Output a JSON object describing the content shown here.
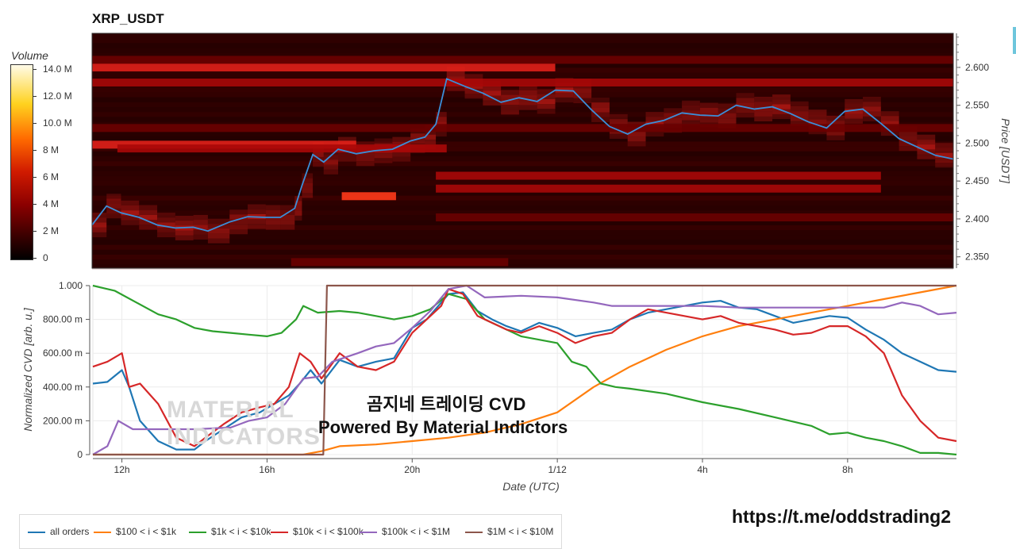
{
  "title": "XRP_USDT",
  "colorbar": {
    "title": "Volume",
    "ticks": [
      "14.0 M",
      "12.0 M",
      "10.0 M",
      "8 M",
      "6 M",
      "4 M",
      "2 M",
      "0"
    ]
  },
  "watermark": {
    "korean": "곰지네 트레이딩 CVD",
    "powered": "Powered By Material Indictors",
    "logo_line1": "MATERIAL",
    "logo_line2": "INDICATORS"
  },
  "url": "https://t.me/oddstrading2",
  "colors": {
    "all_orders": "#1f77b4",
    "g100_1k": "#ff7f0e",
    "g1k_10k": "#2ca02c",
    "g10k_100k": "#d62728",
    "g100k_1m": "#9467bd",
    "g1m_10m": "#8c564b",
    "price_line": "#3b8fd9"
  },
  "legend": [
    {
      "label": "all orders",
      "color": "#1f77b4"
    },
    {
      "label": "$100 < i < $1k",
      "color": "#ff7f0e"
    },
    {
      "label": "$1k < i < $10k",
      "color": "#2ca02c"
    },
    {
      "label": "$10k < i < $100k",
      "color": "#d62728"
    },
    {
      "label": "$100k < i < $1M",
      "color": "#9467bd"
    },
    {
      "label": "$1M < i < $10M",
      "color": "#8c564b"
    }
  ],
  "chart_data": [
    {
      "type": "heatmap",
      "title": "XRP_USDT",
      "ylabel": "Price [USDT]",
      "yticks": [
        "2.600",
        "2.550",
        "2.500",
        "2.450",
        "2.400",
        "2.350"
      ],
      "ylim": [
        2.335,
        2.645
      ],
      "xlim": [
        11.2,
        35.0
      ],
      "price_series": {
        "x": [
          11.2,
          11.6,
          12.0,
          12.5,
          13.0,
          13.5,
          14.0,
          14.4,
          15.0,
          15.5,
          16.0,
          16.4,
          16.8,
          17.0,
          17.3,
          17.6,
          18.0,
          18.5,
          19.0,
          19.5,
          20.0,
          20.4,
          20.7,
          21.0,
          21.5,
          22.0,
          22.5,
          23.0,
          23.5,
          24.0,
          24.5,
          25.0,
          25.5,
          26.0,
          26.5,
          27.0,
          27.5,
          28.0,
          28.5,
          29.0,
          29.5,
          30.0,
          30.5,
          31.0,
          31.5,
          32.0,
          32.5,
          33.0,
          33.5,
          34.0,
          34.5,
          35.0
        ],
        "y": [
          2.392,
          2.417,
          2.408,
          2.402,
          2.392,
          2.388,
          2.389,
          2.384,
          2.396,
          2.403,
          2.402,
          2.402,
          2.414,
          2.444,
          2.485,
          2.475,
          2.492,
          2.486,
          2.49,
          2.492,
          2.503,
          2.508,
          2.525,
          2.585,
          2.575,
          2.566,
          2.554,
          2.56,
          2.555,
          2.57,
          2.569,
          2.544,
          2.522,
          2.512,
          2.525,
          2.53,
          2.54,
          2.537,
          2.536,
          2.55,
          2.545,
          2.548,
          2.539,
          2.528,
          2.52,
          2.542,
          2.545,
          2.526,
          2.506,
          2.495,
          2.484,
          2.479
        ],
        "color": "#3b8fd9"
      },
      "bands": [
        {
          "price": 2.6,
          "x": [
            11.2,
            24.0
          ],
          "level": 0.55
        },
        {
          "price": 2.58,
          "x": [
            11.2,
            35.0
          ],
          "level": 0.25
        },
        {
          "price": 2.498,
          "x": [
            11.2,
            18.5
          ],
          "level": 0.45
        },
        {
          "price": 2.493,
          "x": [
            11.9,
            21.0
          ],
          "level": 0.35
        },
        {
          "price": 2.43,
          "x": [
            18.1,
            19.6
          ],
          "level": 0.75
        },
        {
          "price": 2.457,
          "x": [
            20.7,
            33.0
          ],
          "level": 0.25
        },
        {
          "price": 2.44,
          "x": [
            20.7,
            33.0
          ],
          "level": 0.25
        },
        {
          "price": 2.402,
          "x": [
            20.7,
            35.0
          ],
          "level": 0.18
        },
        {
          "price": 2.343,
          "x": [
            16.7,
            22.7
          ],
          "level": 0.18
        },
        {
          "price": 2.61,
          "x": [
            11.2,
            35.0
          ],
          "level": 0.16
        },
        {
          "price": 2.52,
          "x": [
            11.2,
            35.0
          ],
          "level": 0.14
        }
      ]
    },
    {
      "type": "line",
      "xlabel": "Date (UTC)",
      "ylabel": "Normalized CVD [arb. u.]",
      "xticks": [
        "12h",
        "16h",
        "20h",
        "1/12",
        "4h",
        "8h"
      ],
      "xtick_values": [
        12,
        16,
        20,
        24,
        28,
        32
      ],
      "yticks": [
        "0",
        "200.00 m",
        "400.00 m",
        "600.00 m",
        "800.00 m",
        "1.000"
      ],
      "ylim": [
        0,
        1
      ],
      "xlim": [
        11.2,
        35.0
      ],
      "series": [
        {
          "name": "all orders",
          "x": [
            11.2,
            11.6,
            12.0,
            12.2,
            12.5,
            13.0,
            13.5,
            14.0,
            14.3,
            14.8,
            15.3,
            15.8,
            16.2,
            16.6,
            16.9,
            17.2,
            17.5,
            18.0,
            18.5,
            19.0,
            19.5,
            20.0,
            20.4,
            20.8,
            21.0,
            21.4,
            21.8,
            22.2,
            22.6,
            23.0,
            23.5,
            24.0,
            24.5,
            25.0,
            25.5,
            26.0,
            26.5,
            27.0,
            27.5,
            28.0,
            28.5,
            29.0,
            29.5,
            30.0,
            30.5,
            31.0,
            31.5,
            32.0,
            32.5,
            33.0,
            33.5,
            34.0,
            34.5,
            35.0
          ],
          "y": [
            0.42,
            0.43,
            0.5,
            0.4,
            0.2,
            0.08,
            0.03,
            0.03,
            0.08,
            0.15,
            0.22,
            0.25,
            0.3,
            0.35,
            0.42,
            0.5,
            0.42,
            0.56,
            0.52,
            0.55,
            0.57,
            0.75,
            0.8,
            0.9,
            0.95,
            0.96,
            0.85,
            0.8,
            0.76,
            0.73,
            0.78,
            0.75,
            0.7,
            0.72,
            0.74,
            0.8,
            0.84,
            0.86,
            0.88,
            0.9,
            0.91,
            0.87,
            0.86,
            0.82,
            0.78,
            0.8,
            0.82,
            0.81,
            0.74,
            0.68,
            0.6,
            0.55,
            0.5,
            0.49
          ]
        },
        {
          "name": "$100 < i < $1k",
          "x": [
            11.2,
            12.0,
            13.0,
            14.0,
            15.0,
            16.0,
            17.0,
            17.5,
            18.0,
            19.0,
            20.0,
            21.0,
            22.0,
            23.0,
            24.0,
            25.0,
            26.0,
            27.0,
            28.0,
            29.0,
            30.0,
            31.0,
            32.0,
            33.0,
            34.0,
            35.0
          ],
          "y": [
            0.0,
            0.0,
            0.0,
            0.0,
            0.0,
            0.0,
            0.0,
            0.02,
            0.05,
            0.06,
            0.08,
            0.1,
            0.13,
            0.18,
            0.25,
            0.4,
            0.52,
            0.62,
            0.7,
            0.76,
            0.8,
            0.84,
            0.88,
            0.92,
            0.96,
            1.0
          ]
        },
        {
          "name": "$1k < i < $10k",
          "x": [
            11.2,
            11.8,
            12.4,
            13.0,
            13.5,
            14.0,
            14.5,
            15.0,
            15.5,
            16.0,
            16.4,
            16.8,
            17.0,
            17.4,
            18.0,
            18.5,
            19.0,
            19.5,
            20.0,
            20.5,
            21.0,
            21.5,
            22.0,
            22.5,
            23.0,
            23.5,
            24.0,
            24.4,
            24.8,
            25.2,
            25.6,
            26.0,
            27.0,
            28.0,
            29.0,
            30.0,
            31.0,
            31.5,
            32.0,
            32.5,
            33.0,
            33.5,
            34.0,
            34.5,
            35.0
          ],
          "y": [
            1.0,
            0.97,
            0.9,
            0.83,
            0.8,
            0.75,
            0.73,
            0.72,
            0.71,
            0.7,
            0.72,
            0.8,
            0.88,
            0.84,
            0.85,
            0.84,
            0.82,
            0.8,
            0.82,
            0.86,
            0.95,
            0.92,
            0.8,
            0.75,
            0.7,
            0.68,
            0.66,
            0.55,
            0.52,
            0.42,
            0.4,
            0.39,
            0.36,
            0.31,
            0.27,
            0.22,
            0.17,
            0.12,
            0.13,
            0.1,
            0.08,
            0.05,
            0.01,
            0.01,
            0.0
          ]
        },
        {
          "name": "$10k < i < $100k",
          "x": [
            11.2,
            11.6,
            12.0,
            12.2,
            12.5,
            13.0,
            13.5,
            14.0,
            14.3,
            14.8,
            15.3,
            15.8,
            16.2,
            16.6,
            16.9,
            17.2,
            17.5,
            18.0,
            18.5,
            19.0,
            19.5,
            20.0,
            20.4,
            20.8,
            21.0,
            21.4,
            21.8,
            22.2,
            22.6,
            23.0,
            23.5,
            24.0,
            24.5,
            25.0,
            25.5,
            26.0,
            26.5,
            27.0,
            27.5,
            28.0,
            28.5,
            29.0,
            29.5,
            30.0,
            30.5,
            31.0,
            31.5,
            32.0,
            32.5,
            33.0,
            33.5,
            34.0,
            34.5,
            35.0
          ],
          "y": [
            0.52,
            0.55,
            0.6,
            0.4,
            0.42,
            0.3,
            0.1,
            0.05,
            0.1,
            0.18,
            0.25,
            0.28,
            0.3,
            0.4,
            0.6,
            0.55,
            0.45,
            0.6,
            0.52,
            0.5,
            0.55,
            0.72,
            0.8,
            0.88,
            0.98,
            0.95,
            0.82,
            0.78,
            0.74,
            0.72,
            0.76,
            0.72,
            0.66,
            0.7,
            0.72,
            0.8,
            0.86,
            0.84,
            0.82,
            0.8,
            0.82,
            0.78,
            0.76,
            0.74,
            0.71,
            0.72,
            0.76,
            0.76,
            0.7,
            0.6,
            0.35,
            0.2,
            0.1,
            0.08
          ]
        },
        {
          "name": "$100k < i < $1M",
          "x": [
            11.2,
            11.6,
            11.9,
            12.3,
            12.8,
            14.0,
            15.0,
            15.5,
            16.0,
            16.5,
            17.0,
            17.4,
            17.8,
            18.5,
            19.0,
            19.5,
            20.0,
            20.5,
            21.0,
            21.5,
            22.0,
            23.0,
            24.0,
            25.0,
            25.5,
            26.0,
            27.0,
            28.0,
            29.0,
            30.0,
            31.0,
            32.0,
            33.0,
            33.5,
            34.0,
            34.5,
            35.0
          ],
          "y": [
            0.0,
            0.05,
            0.2,
            0.15,
            0.15,
            0.15,
            0.16,
            0.2,
            0.22,
            0.3,
            0.45,
            0.46,
            0.55,
            0.6,
            0.64,
            0.66,
            0.75,
            0.85,
            0.98,
            1.0,
            0.93,
            0.94,
            0.93,
            0.9,
            0.88,
            0.88,
            0.88,
            0.88,
            0.87,
            0.87,
            0.87,
            0.87,
            0.87,
            0.9,
            0.88,
            0.83,
            0.84
          ]
        },
        {
          "name": "$1M < i < $10M",
          "x": [
            11.2,
            17.55,
            17.65,
            35.0
          ],
          "y": [
            0.0,
            0.0,
            1.0,
            1.0
          ]
        }
      ]
    }
  ]
}
